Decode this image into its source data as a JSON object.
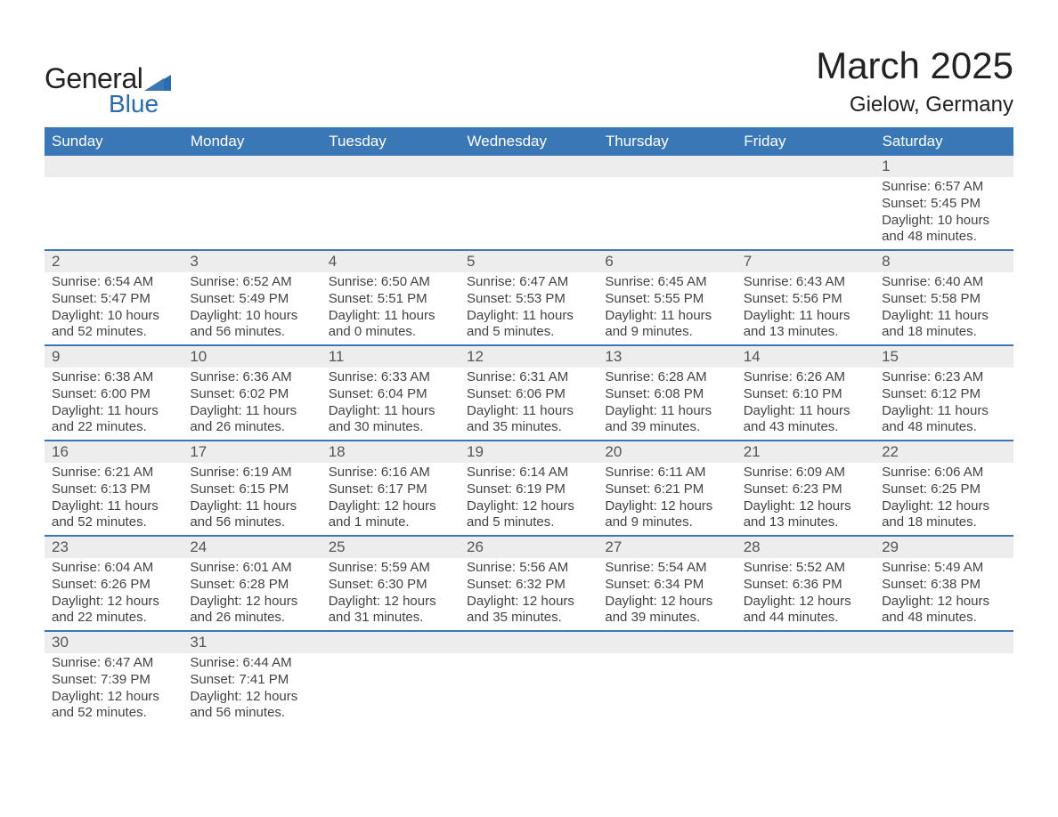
{
  "brand": {
    "name1": "General",
    "name2": "Blue",
    "accent": "#2b6cb0"
  },
  "title": "March 2025",
  "location": "Gielow, Germany",
  "colors": {
    "header_bg": "#3a77b7",
    "header_fg": "#ffffff",
    "daynum_bg": "#ededed",
    "row_border": "#3a77b7",
    "text": "#3a3a3a"
  },
  "weekdays": [
    "Sunday",
    "Monday",
    "Tuesday",
    "Wednesday",
    "Thursday",
    "Friday",
    "Saturday"
  ],
  "weeks": [
    [
      null,
      null,
      null,
      null,
      null,
      null,
      {
        "d": "1",
        "sr": "6:57 AM",
        "ss": "5:45 PM",
        "dl": "10 hours and 48 minutes."
      }
    ],
    [
      {
        "d": "2",
        "sr": "6:54 AM",
        "ss": "5:47 PM",
        "dl": "10 hours and 52 minutes."
      },
      {
        "d": "3",
        "sr": "6:52 AM",
        "ss": "5:49 PM",
        "dl": "10 hours and 56 minutes."
      },
      {
        "d": "4",
        "sr": "6:50 AM",
        "ss": "5:51 PM",
        "dl": "11 hours and 0 minutes."
      },
      {
        "d": "5",
        "sr": "6:47 AM",
        "ss": "5:53 PM",
        "dl": "11 hours and 5 minutes."
      },
      {
        "d": "6",
        "sr": "6:45 AM",
        "ss": "5:55 PM",
        "dl": "11 hours and 9 minutes."
      },
      {
        "d": "7",
        "sr": "6:43 AM",
        "ss": "5:56 PM",
        "dl": "11 hours and 13 minutes."
      },
      {
        "d": "8",
        "sr": "6:40 AM",
        "ss": "5:58 PM",
        "dl": "11 hours and 18 minutes."
      }
    ],
    [
      {
        "d": "9",
        "sr": "6:38 AM",
        "ss": "6:00 PM",
        "dl": "11 hours and 22 minutes."
      },
      {
        "d": "10",
        "sr": "6:36 AM",
        "ss": "6:02 PM",
        "dl": "11 hours and 26 minutes."
      },
      {
        "d": "11",
        "sr": "6:33 AM",
        "ss": "6:04 PM",
        "dl": "11 hours and 30 minutes."
      },
      {
        "d": "12",
        "sr": "6:31 AM",
        "ss": "6:06 PM",
        "dl": "11 hours and 35 minutes."
      },
      {
        "d": "13",
        "sr": "6:28 AM",
        "ss": "6:08 PM",
        "dl": "11 hours and 39 minutes."
      },
      {
        "d": "14",
        "sr": "6:26 AM",
        "ss": "6:10 PM",
        "dl": "11 hours and 43 minutes."
      },
      {
        "d": "15",
        "sr": "6:23 AM",
        "ss": "6:12 PM",
        "dl": "11 hours and 48 minutes."
      }
    ],
    [
      {
        "d": "16",
        "sr": "6:21 AM",
        "ss": "6:13 PM",
        "dl": "11 hours and 52 minutes."
      },
      {
        "d": "17",
        "sr": "6:19 AM",
        "ss": "6:15 PM",
        "dl": "11 hours and 56 minutes."
      },
      {
        "d": "18",
        "sr": "6:16 AM",
        "ss": "6:17 PM",
        "dl": "12 hours and 1 minute."
      },
      {
        "d": "19",
        "sr": "6:14 AM",
        "ss": "6:19 PM",
        "dl": "12 hours and 5 minutes."
      },
      {
        "d": "20",
        "sr": "6:11 AM",
        "ss": "6:21 PM",
        "dl": "12 hours and 9 minutes."
      },
      {
        "d": "21",
        "sr": "6:09 AM",
        "ss": "6:23 PM",
        "dl": "12 hours and 13 minutes."
      },
      {
        "d": "22",
        "sr": "6:06 AM",
        "ss": "6:25 PM",
        "dl": "12 hours and 18 minutes."
      }
    ],
    [
      {
        "d": "23",
        "sr": "6:04 AM",
        "ss": "6:26 PM",
        "dl": "12 hours and 22 minutes."
      },
      {
        "d": "24",
        "sr": "6:01 AM",
        "ss": "6:28 PM",
        "dl": "12 hours and 26 minutes."
      },
      {
        "d": "25",
        "sr": "5:59 AM",
        "ss": "6:30 PM",
        "dl": "12 hours and 31 minutes."
      },
      {
        "d": "26",
        "sr": "5:56 AM",
        "ss": "6:32 PM",
        "dl": "12 hours and 35 minutes."
      },
      {
        "d": "27",
        "sr": "5:54 AM",
        "ss": "6:34 PM",
        "dl": "12 hours and 39 minutes."
      },
      {
        "d": "28",
        "sr": "5:52 AM",
        "ss": "6:36 PM",
        "dl": "12 hours and 44 minutes."
      },
      {
        "d": "29",
        "sr": "5:49 AM",
        "ss": "6:38 PM",
        "dl": "12 hours and 48 minutes."
      }
    ],
    [
      {
        "d": "30",
        "sr": "6:47 AM",
        "ss": "7:39 PM",
        "dl": "12 hours and 52 minutes."
      },
      {
        "d": "31",
        "sr": "6:44 AM",
        "ss": "7:41 PM",
        "dl": "12 hours and 56 minutes."
      },
      null,
      null,
      null,
      null,
      null
    ]
  ],
  "labels": {
    "sunrise": "Sunrise:",
    "sunset": "Sunset:",
    "daylight": "Daylight:"
  }
}
